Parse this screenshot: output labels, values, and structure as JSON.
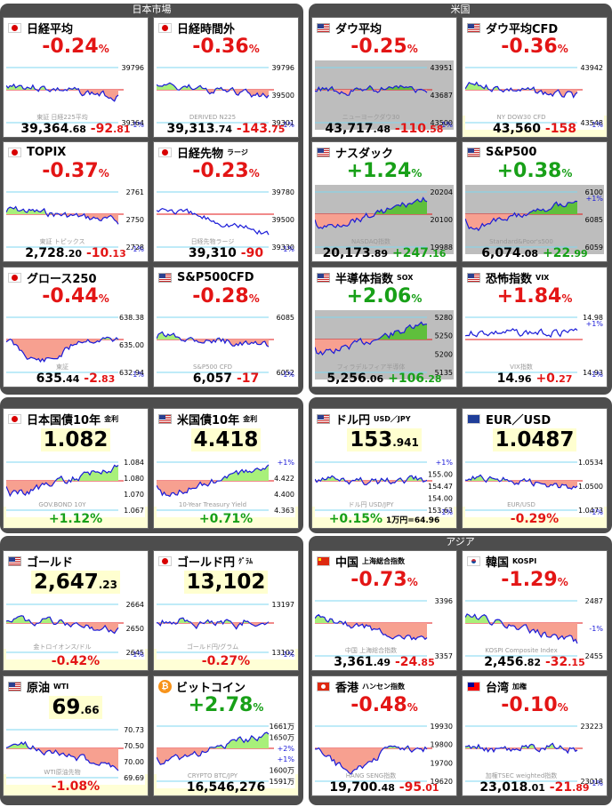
{
  "panels": {
    "japan": "日本市場",
    "us": "米国",
    "asia": "アジア"
  },
  "cards": [
    {
      "name": "日経平均",
      "flag": "jp",
      "pct": "-0.24",
      "unit": "%",
      "dir": "dn",
      "value": "39,364",
      "value_dec": ".68",
      "change": "-92",
      "change_dec": ".81",
      "ticks": [
        "39796",
        "39364"
      ],
      "pl": "",
      "ml": "-1%",
      "watermark": "東証 日経225平均",
      "trend": "flat_down",
      "fill": "green"
    },
    {
      "name": "日経時間外",
      "flag": "jp",
      "pct": "-0.36",
      "unit": "%",
      "dir": "dn",
      "value": "39,313",
      "value_dec": ".74",
      "change": "-143",
      "change_dec": ".75",
      "ticks": [
        "39796",
        "39500",
        "39301"
      ],
      "pl": "",
      "ml": "-1%",
      "watermark": "DERIVED N225",
      "trend": "flat_down",
      "fill": "green"
    },
    {
      "name": "ダウ平均",
      "flag": "us",
      "pct": "-0.25",
      "unit": "%",
      "dir": "dn",
      "value": "43,717",
      "value_dec": ".48",
      "change": "-110",
      "change_dec": ".58",
      "ticks": [
        "43951",
        "43687",
        "43500"
      ],
      "pl": "",
      "ml": "-1%",
      "watermark": "ニューヨークダウ30",
      "trend": "flat",
      "fill": "gray"
    },
    {
      "name": "ダウ平均CFD",
      "flag": "us",
      "pct": "-0.36",
      "unit": "%",
      "dir": "dn",
      "value": "43,560",
      "value_dec": "",
      "change": "-158",
      "change_dec": "",
      "ticks": [
        "43942",
        "43548"
      ],
      "pl": "",
      "ml": "-1%",
      "watermark": "NY DOW30 CFD",
      "trend": "flat_down",
      "fill": "green",
      "yellowband": true
    },
    {
      "name": "TOPIX",
      "flag": "jp",
      "pct": "-0.37",
      "unit": "%",
      "dir": "dn",
      "value": "2,728",
      "value_dec": ".20",
      "change": "-10",
      "change_dec": ".13",
      "ticks": [
        "2761",
        "2750",
        "2728"
      ],
      "pl": "",
      "ml": "-1%",
      "watermark": "東証 トピックス",
      "trend": "flat_down",
      "fill": "green"
    },
    {
      "name": "日経先物",
      "sub": "ラージ",
      "flag": "jp",
      "pct": "-0.23",
      "unit": "%",
      "dir": "dn",
      "value": "39,310",
      "value_dec": "",
      "change": "-90",
      "change_dec": "",
      "ticks": [
        "39780",
        "39500",
        "39330"
      ],
      "pl": "",
      "ml": "-1%",
      "watermark": "日経先物ラージ",
      "trend": "down",
      "fill": "none"
    },
    {
      "name": "ナスダック",
      "flag": "us",
      "pct": "+1.24",
      "unit": "%",
      "dir": "up",
      "value": "20,173",
      "value_dec": ".89",
      "change": "+247",
      "change_dec": ".16",
      "ticks": [
        "20204",
        "20100",
        "19988"
      ],
      "pl": "",
      "ml": "",
      "watermark": "NASDAQ指数",
      "trend": "up",
      "fill": "gray"
    },
    {
      "name": "S&P500",
      "flag": "us",
      "pct": "+0.38",
      "unit": "%",
      "dir": "up",
      "value": "6,074",
      "value_dec": ".08",
      "change": "+22",
      "change_dec": ".99",
      "ticks": [
        "6100",
        "6085",
        "6059"
      ],
      "pl": "+1%",
      "ml": "",
      "watermark": "Standard&Poor's500",
      "trend": "up",
      "fill": "gray"
    },
    {
      "name": "グロース250",
      "flag": "jp",
      "pct": "-0.44",
      "unit": "%",
      "dir": "dn",
      "value": "635",
      "value_dec": ".44",
      "change": "-2",
      "change_dec": ".83",
      "ticks": [
        "638.38",
        "635.00",
        "632.94"
      ],
      "pl": "",
      "ml": "-1%",
      "watermark": "東証",
      "trend": "dip",
      "fill": "red"
    },
    {
      "name": "S&P500CFD",
      "flag": "us",
      "pct": "-0.28",
      "unit": "%",
      "dir": "dn",
      "value": "6,057",
      "value_dec": "",
      "change": "-17",
      "change_dec": "",
      "ticks": [
        "6085",
        "6052"
      ],
      "pl": "",
      "ml": "-1%",
      "watermark": "S&P500 CFD",
      "trend": "flat_down",
      "fill": "green"
    },
    {
      "name": "半導体指数",
      "sub": "SOX",
      "flag": "us",
      "pct": "+2.06",
      "unit": "%",
      "dir": "up",
      "value": "5,256",
      "value_dec": ".06",
      "change": "+106",
      "change_dec": ".28",
      "ticks": [
        "5280",
        "5250",
        "5200",
        "5135"
      ],
      "pl": "",
      "ml": "",
      "watermark": "フィラデルフィア半導体",
      "trend": "up",
      "fill": "gray"
    },
    {
      "name": "恐怖指数",
      "sub": "VIX",
      "flag": "us",
      "pct": "+1.84",
      "unit": "%",
      "dir": "dn",
      "value": "14",
      "value_dec": ".96",
      "change": "+0",
      "change_dec": ".27",
      "ticks": [
        "14.98",
        "14.93"
      ],
      "pl": "+1%",
      "ml": "-1%",
      "watermark": "VIX指数",
      "trend": "spike",
      "fill": "none"
    },
    {
      "name": "日本国債10年",
      "sub": "金利",
      "flag": "jp",
      "big": "1.082",
      "big_dec": "",
      "bottom": "+1.12",
      "bottom_unit": "%",
      "dir": "up",
      "ticks": [
        "1.084",
        "1.080",
        "1.070",
        "1.067"
      ],
      "pl": "",
      "ml": "",
      "watermark": "GOV.BOND 10Y",
      "trend": "up",
      "fill": "green",
      "yellowband": true
    },
    {
      "name": "米国債10年",
      "sub": "金利",
      "flag": "us",
      "big": "4.418",
      "big_dec": "",
      "bottom": "+0.71",
      "bottom_unit": "%",
      "dir": "up",
      "ticks": [
        "+1%",
        "4.422",
        "4.400",
        "4.363"
      ],
      "pl": "",
      "ml": "",
      "watermark": "10-Year Treasury Yield",
      "trend": "up",
      "fill": "green",
      "yellowband": true
    },
    {
      "name": "ドル円",
      "sub": "USD／JPY",
      "flag": "us",
      "big": "153",
      "big_dec": ".941",
      "bottom": "+0.15",
      "bottom_unit": "%",
      "dir": "up",
      "note": "1万円=64.96",
      "ticks": [
        "+1%",
        "155.00",
        "154.47",
        "154.00",
        "153.63"
      ],
      "pl": "",
      "ml": "-1%",
      "watermark": "ドル円 USD/JPY",
      "trend": "flat",
      "fill": "green",
      "yellowband": true
    },
    {
      "name": "EUR／USD",
      "flag": "eu",
      "big": "1.0487",
      "big_dec": "",
      "bottom": "-0.29",
      "bottom_unit": "%",
      "dir": "dn",
      "ticks": [
        "1.0534",
        "1.0500",
        "1.0473"
      ],
      "pl": "",
      "ml": "-1%",
      "watermark": "EUR/USD",
      "trend": "flat_down",
      "fill": "red",
      "yellowband": true
    },
    {
      "name": "ゴールド",
      "flag": "us",
      "big": "2,647",
      "big_dec": ".23",
      "bottom": "-0.42",
      "bottom_unit": "%",
      "dir": "dn",
      "ticks": [
        "2664",
        "2650",
        "2645"
      ],
      "pl": "",
      "ml": "-1%",
      "watermark": "金トロイオンス/ドル",
      "trend": "flat_down",
      "fill": "red",
      "yellowband": true
    },
    {
      "name": "ゴールド円",
      "sub": "ｸﾞﾗﾑ",
      "flag": "jp",
      "big": "13,102",
      "big_dec": "",
      "bottom": "-0.27",
      "bottom_unit": "%",
      "dir": "dn",
      "ticks": [
        "13197",
        "13102"
      ],
      "pl": "",
      "ml": "-1%",
      "watermark": "ゴールド円/グラム",
      "trend": "flat",
      "fill": "green",
      "yellowband": true
    },
    {
      "name": "中国",
      "sub": "上海総合指数",
      "flag": "cn",
      "pct": "-0.73",
      "unit": "%",
      "dir": "dn",
      "value": "3,361",
      "value_dec": ".49",
      "change": "-24",
      "change_dec": ".85",
      "ticks": [
        "3396",
        "3357"
      ],
      "pl": "",
      "ml": "",
      "watermark": "中国 上海総合指数",
      "trend": "down",
      "fill": "red"
    },
    {
      "name": "韓国",
      "sub": "KOSPI",
      "flag": "kr",
      "pct": "-1.29",
      "unit": "%",
      "dir": "dn",
      "value": "2,456",
      "value_dec": ".82",
      "change": "-32",
      "change_dec": ".15",
      "ticks": [
        "2487",
        "-1%",
        "2455"
      ],
      "pl": "",
      "ml": "",
      "watermark": "KOSPI Composite Index",
      "trend": "down",
      "fill": "red"
    },
    {
      "name": "原油",
      "sub": "WTI",
      "flag": "us",
      "big": "69",
      "big_dec": ".66",
      "bottom": "-1.08",
      "bottom_unit": "%",
      "dir": "dn",
      "ticks": [
        "70.73",
        "70.50",
        "70.00",
        "69.69"
      ],
      "pl": "",
      "ml": "",
      "watermark": "WTI原油先物",
      "trend": "down",
      "fill": "red",
      "yellowband": true
    },
    {
      "name": "ビットコイン",
      "flag": "btc",
      "pct": "+2.78",
      "unit": "%",
      "dir": "up",
      "value": "16,546,276",
      "value_dec": "",
      "change": "",
      "change_dec": "",
      "ticks": [
        "1661万",
        "1650万",
        "+2%",
        "+1%",
        "1600万",
        "1591万"
      ],
      "pl": "",
      "ml": "",
      "watermark": "CRYPTO BTC/JPY",
      "trend": "up",
      "fill": "green",
      "yellowband": true
    },
    {
      "name": "香港",
      "sub": "ハンセン指数",
      "flag": "hk",
      "pct": "-0.48",
      "unit": "%",
      "dir": "dn",
      "value": "19,700",
      "value_dec": ".48",
      "change": "-95",
      "change_dec": ".01",
      "ticks": [
        "19930",
        "19800",
        "19700",
        "19620"
      ],
      "pl": "",
      "ml": "",
      "watermark": "HANG SENG指数",
      "trend": "dip",
      "fill": "red"
    },
    {
      "name": "台湾",
      "sub": "加権",
      "flag": "tw",
      "pct": "-0.10",
      "unit": "%",
      "dir": "dn",
      "value": "23,018",
      "value_dec": ".01",
      "change": "-21",
      "change_dec": ".89",
      "ticks": [
        "23223",
        "23018"
      ],
      "pl": "",
      "ml": "-1%",
      "watermark": "加権TSEC weighted指数",
      "trend": "flat",
      "fill": "green"
    }
  ]
}
